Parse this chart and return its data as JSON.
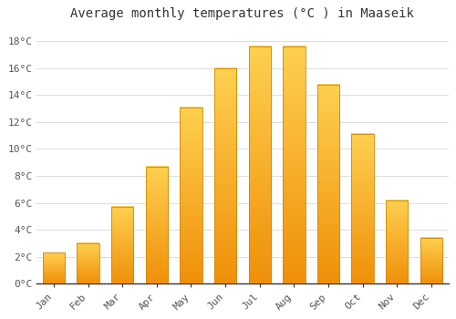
{
  "title": "Average monthly temperatures (°C ) in Maaseik",
  "months": [
    "Jan",
    "Feb",
    "Mar",
    "Apr",
    "May",
    "Jun",
    "Jul",
    "Aug",
    "Sep",
    "Oct",
    "Nov",
    "Dec"
  ],
  "values": [
    2.3,
    3.0,
    5.7,
    8.7,
    13.1,
    16.0,
    17.6,
    17.6,
    14.8,
    11.1,
    6.2,
    3.4
  ],
  "bar_color_bright": "#FFD050",
  "bar_color_dark": "#F0900A",
  "bar_edge_color": "#CC8800",
  "background_color": "#FFFFFF",
  "plot_bg_color": "#FFFFFF",
  "grid_color": "#DDDDDD",
  "ylim": [
    0,
    19
  ],
  "ytick_values": [
    0,
    2,
    4,
    6,
    8,
    10,
    12,
    14,
    16,
    18
  ],
  "title_fontsize": 10,
  "tick_fontsize": 8,
  "font_family": "monospace"
}
